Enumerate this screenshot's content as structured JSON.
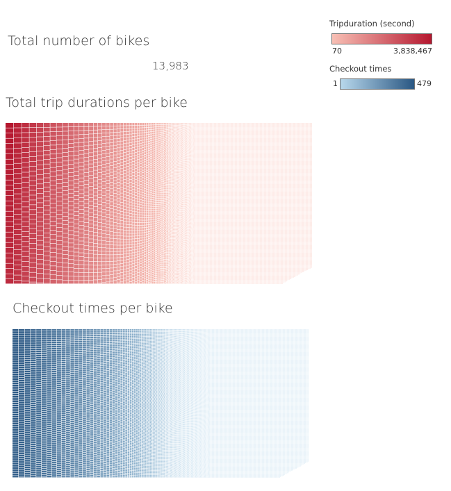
{
  "kpi": {
    "title": "Total number of bikes",
    "value": "13,983"
  },
  "legends": {
    "tripduration": {
      "title": "Tripduration (second)",
      "min_label": "70",
      "max_label": "3,838,467",
      "color_low": "#f8c0b5",
      "color_high": "#b5172f"
    },
    "checkout": {
      "title": "Checkout times",
      "min_label": "1",
      "max_label": "479",
      "color_low": "#b8d8ec",
      "color_high": "#2a5783"
    }
  },
  "chart_data": [
    {
      "type": "heatmap",
      "title": "Total trip durations per bike",
      "encoding": "treemap, one rectangle per bike, size and color = total trip duration",
      "color_range": [
        70,
        3838467
      ],
      "colors": [
        "#f8c0b5",
        "#b5172f"
      ]
    },
    {
      "type": "heatmap",
      "title": "Checkout times per bike",
      "encoding": "treemap, one rectangle per bike, size and color = checkout count",
      "color_range": [
        1,
        479
      ],
      "colors": [
        "#b8d8ec",
        "#2a5783"
      ]
    }
  ]
}
